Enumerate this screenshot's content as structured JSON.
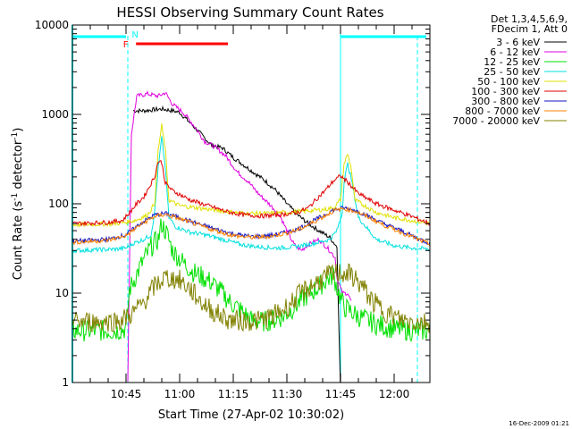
{
  "chart_data": {
    "type": "line",
    "title": "HESSI Observing Summary Count Rates",
    "xlabel": "Start Time (27-Apr-02 10:30:02)",
    "ylabel_main": "Count Rate (s",
    "ylabel_sup1": "-1",
    "ylabel_mid": " detector",
    "ylabel_sup2": "-1",
    "ylabel_end": ")",
    "y_scale": "log",
    "ylim": [
      1,
      10000
    ],
    "xlim_minutes": [
      0,
      100
    ],
    "x_ticks": [
      {
        "m": 15,
        "label": "10:45"
      },
      {
        "m": 30,
        "label": "11:00"
      },
      {
        "m": 45,
        "label": "11:15"
      },
      {
        "m": 60,
        "label": "11:30"
      },
      {
        "m": 75,
        "label": "11:45"
      },
      {
        "m": 90,
        "label": "12:00"
      }
    ],
    "y_ticks": [
      {
        "v": 1,
        "label": "1"
      },
      {
        "v": 10,
        "label": "10"
      },
      {
        "v": 100,
        "label": "100"
      },
      {
        "v": 1000,
        "label": "1000"
      },
      {
        "v": 10000,
        "label": "10000"
      }
    ],
    "legend_header": [
      "Det 1,3,4,5,6,9,",
      "FDecim 1, Att 0"
    ],
    "series": [
      {
        "name": "3 - 6 keV",
        "color": "#000000",
        "points": [
          [
            17,
            1100
          ],
          [
            20,
            1100
          ],
          [
            25,
            1150
          ],
          [
            28,
            1100
          ],
          [
            30,
            1050
          ],
          [
            33,
            800
          ],
          [
            36,
            600
          ],
          [
            39,
            450
          ],
          [
            42,
            420
          ],
          [
            45,
            330
          ],
          [
            48,
            270
          ],
          [
            51,
            220
          ],
          [
            54,
            180
          ],
          [
            57,
            140
          ],
          [
            60,
            100
          ],
          [
            63,
            75
          ],
          [
            66,
            60
          ],
          [
            69,
            50
          ],
          [
            72,
            42
          ],
          [
            74,
            33
          ],
          [
            75,
            0.8
          ],
          [
            77,
            0.8
          ]
        ]
      },
      {
        "name": "6 - 12 keV",
        "color": "#e000e0",
        "points": [
          [
            15.5,
            1
          ],
          [
            16.5,
            600
          ],
          [
            18,
            1600
          ],
          [
            21,
            1700
          ],
          [
            24,
            1600
          ],
          [
            26,
            1750
          ],
          [
            28,
            1300
          ],
          [
            31,
            1050
          ],
          [
            34,
            750
          ],
          [
            37,
            500
          ],
          [
            40,
            430
          ],
          [
            43,
            340
          ],
          [
            46,
            230
          ],
          [
            49,
            180
          ],
          [
            52,
            130
          ],
          [
            55,
            100
          ],
          [
            58,
            75
          ],
          [
            60,
            50
          ],
          [
            62,
            35
          ],
          [
            64,
            30
          ],
          [
            66,
            35
          ],
          [
            69,
            40
          ],
          [
            72,
            30
          ],
          [
            73.5,
            25
          ],
          [
            74,
            15
          ],
          [
            75.5,
            10
          ],
          [
            77,
            10
          ],
          [
            78,
            8
          ]
        ]
      },
      {
        "name": "12 - 25 keV",
        "color": "#00e000",
        "points": [
          [
            0,
            3.8
          ],
          [
            12,
            3.8
          ],
          [
            15,
            4
          ],
          [
            16,
            11
          ],
          [
            19,
            20
          ],
          [
            22,
            33
          ],
          [
            24,
            40
          ],
          [
            25,
            60
          ],
          [
            26.5,
            45
          ],
          [
            28,
            30
          ],
          [
            31,
            22
          ],
          [
            34,
            17
          ],
          [
            38,
            14
          ],
          [
            40,
            12
          ],
          [
            42,
            10
          ],
          [
            44,
            8
          ],
          [
            47,
            6.5
          ],
          [
            50,
            5
          ],
          [
            53,
            4.8
          ],
          [
            56,
            5
          ],
          [
            59,
            5.5
          ],
          [
            62,
            7
          ],
          [
            65,
            9
          ],
          [
            68,
            11
          ],
          [
            71,
            14
          ],
          [
            73,
            16
          ],
          [
            74.5,
            10
          ],
          [
            76,
            7
          ],
          [
            80,
            5.5
          ],
          [
            85,
            4.5
          ],
          [
            90,
            4
          ],
          [
            95,
            3.8
          ],
          [
            100,
            3.8
          ]
        ]
      },
      {
        "name": "25 - 50 keV",
        "color": "#00e0e0",
        "points": [
          [
            0,
            30
          ],
          [
            12,
            31
          ],
          [
            15,
            32
          ],
          [
            17,
            36
          ],
          [
            20,
            40
          ],
          [
            22,
            45
          ],
          [
            23,
            80
          ],
          [
            24,
            250
          ],
          [
            25,
            550
          ],
          [
            26,
            250
          ],
          [
            27,
            70
          ],
          [
            29,
            55
          ],
          [
            33,
            48
          ],
          [
            37,
            45
          ],
          [
            42,
            40
          ],
          [
            47,
            35
          ],
          [
            52,
            33
          ],
          [
            57,
            32
          ],
          [
            62,
            33
          ],
          [
            66,
            35
          ],
          [
            70,
            38
          ],
          [
            72,
            40
          ],
          [
            74,
            50
          ],
          [
            75.5,
            80
          ],
          [
            76,
            180
          ],
          [
            77,
            280
          ],
          [
            78,
            190
          ],
          [
            80,
            70
          ],
          [
            85,
            40
          ],
          [
            90,
            34
          ],
          [
            95,
            32
          ],
          [
            100,
            31
          ]
        ]
      },
      {
        "name": "50 - 100 keV",
        "color": "#e0e000",
        "points": [
          [
            0,
            58
          ],
          [
            12,
            60
          ],
          [
            15,
            62
          ],
          [
            18,
            66
          ],
          [
            21,
            75
          ],
          [
            23,
            100
          ],
          [
            24,
            400
          ],
          [
            25,
            750
          ],
          [
            26,
            400
          ],
          [
            27,
            110
          ],
          [
            30,
            95
          ],
          [
            35,
            90
          ],
          [
            40,
            85
          ],
          [
            45,
            80
          ],
          [
            50,
            78
          ],
          [
            55,
            78
          ],
          [
            60,
            80
          ],
          [
            65,
            83
          ],
          [
            70,
            86
          ],
          [
            73,
            90
          ],
          [
            75,
            110
          ],
          [
            76,
            280
          ],
          [
            77,
            360
          ],
          [
            78,
            250
          ],
          [
            79,
            110
          ],
          [
            85,
            80
          ],
          [
            90,
            70
          ],
          [
            95,
            65
          ],
          [
            100,
            60
          ]
        ]
      },
      {
        "name": "100 - 300 keV",
        "color": "#e00000",
        "points": [
          [
            0,
            60
          ],
          [
            10,
            62
          ],
          [
            14,
            65
          ],
          [
            16,
            80
          ],
          [
            18,
            100
          ],
          [
            20,
            120
          ],
          [
            23,
            200
          ],
          [
            24,
            300
          ],
          [
            25,
            290
          ],
          [
            26,
            170
          ],
          [
            28,
            140
          ],
          [
            33,
            110
          ],
          [
            38,
            95
          ],
          [
            43,
            82
          ],
          [
            48,
            75
          ],
          [
            53,
            73
          ],
          [
            58,
            75
          ],
          [
            63,
            80
          ],
          [
            66,
            90
          ],
          [
            68,
            110
          ],
          [
            71,
            145
          ],
          [
            73,
            180
          ],
          [
            75,
            205
          ],
          [
            77,
            175
          ],
          [
            80,
            130
          ],
          [
            85,
            100
          ],
          [
            90,
            85
          ],
          [
            95,
            72
          ],
          [
            100,
            60
          ]
        ]
      },
      {
        "name": "300 - 800 keV",
        "color": "#1010c0",
        "points": [
          [
            0,
            38
          ],
          [
            10,
            40
          ],
          [
            15,
            45
          ],
          [
            19,
            60
          ],
          [
            23,
            75
          ],
          [
            26,
            78
          ],
          [
            30,
            70
          ],
          [
            35,
            60
          ],
          [
            40,
            52
          ],
          [
            45,
            46
          ],
          [
            50,
            43
          ],
          [
            55,
            44
          ],
          [
            60,
            48
          ],
          [
            63,
            52
          ],
          [
            66,
            60
          ],
          [
            70,
            73
          ],
          [
            73,
            85
          ],
          [
            76,
            90
          ],
          [
            79,
            85
          ],
          [
            83,
            72
          ],
          [
            87,
            60
          ],
          [
            92,
            50
          ],
          [
            96,
            42
          ],
          [
            100,
            36
          ]
        ]
      },
      {
        "name": "800 - 7000 keV",
        "color": "#ff8000",
        "points": [
          [
            0,
            37
          ],
          [
            10,
            39
          ],
          [
            15,
            44
          ],
          [
            19,
            58
          ],
          [
            23,
            72
          ],
          [
            26,
            76
          ],
          [
            30,
            68
          ],
          [
            35,
            58
          ],
          [
            40,
            50
          ],
          [
            45,
            44
          ],
          [
            50,
            42
          ],
          [
            55,
            43
          ],
          [
            60,
            47
          ],
          [
            63,
            51
          ],
          [
            66,
            58
          ],
          [
            70,
            71
          ],
          [
            73,
            83
          ],
          [
            76,
            88
          ],
          [
            79,
            83
          ],
          [
            83,
            70
          ],
          [
            87,
            58
          ],
          [
            92,
            48
          ],
          [
            96,
            41
          ],
          [
            100,
            35
          ]
        ]
      },
      {
        "name": "7000 - 20000 keV",
        "color": "#808000",
        "points": [
          [
            0,
            4.8
          ],
          [
            10,
            4.8
          ],
          [
            14,
            5
          ],
          [
            17,
            6
          ],
          [
            20,
            8
          ],
          [
            23,
            12
          ],
          [
            26,
            15
          ],
          [
            30,
            14
          ],
          [
            33,
            11
          ],
          [
            36,
            8
          ],
          [
            40,
            6
          ],
          [
            44,
            5
          ],
          [
            48,
            4.9
          ],
          [
            52,
            4.9
          ],
          [
            56,
            5.5
          ],
          [
            60,
            7
          ],
          [
            64,
            10
          ],
          [
            68,
            13
          ],
          [
            72,
            16
          ],
          [
            75,
            17
          ],
          [
            78,
            16
          ],
          [
            81,
            12
          ],
          [
            84,
            8
          ],
          [
            88,
            6
          ],
          [
            92,
            5
          ],
          [
            96,
            4.8
          ],
          [
            100,
            4.7
          ]
        ]
      }
    ],
    "annotations": [
      {
        "text": "N",
        "color": "#00ffff"
      },
      {
        "text": "F",
        "color": "#ff0000"
      }
    ],
    "footer_date": "16-Dec-2009 01:21"
  }
}
